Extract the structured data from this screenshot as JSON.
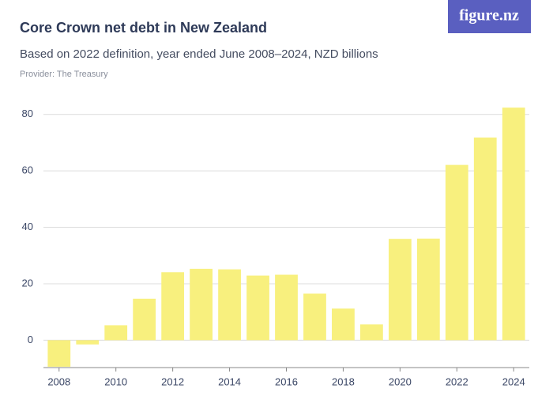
{
  "chart_data": {
    "type": "bar",
    "title": "Core Crown net debt in New Zealand",
    "subtitle": "Based on 2022 definition, year ended June 2008–2024, NZD billions",
    "provider": "Provider: The Treasury",
    "logo": "figure.nz",
    "x": [
      2008,
      2009,
      2010,
      2011,
      2012,
      2013,
      2014,
      2015,
      2016,
      2017,
      2018,
      2019,
      2020,
      2021,
      2022,
      2023,
      2024
    ],
    "values": [
      -9.4,
      -1.5,
      5.3,
      14.7,
      24.1,
      25.3,
      25.1,
      22.9,
      23.2,
      16.5,
      11.2,
      5.6,
      35.9,
      36.0,
      62.1,
      71.8,
      82.4
    ],
    "color": "#f8f07e",
    "xlim": [
      2007.45,
      2024.55
    ],
    "xticks": [
      2008,
      2010,
      2012,
      2014,
      2016,
      2018,
      2020,
      2022,
      2024
    ],
    "ylim": [
      -9.7,
      84.4
    ],
    "yticks": [
      0,
      20,
      40,
      60,
      80
    ],
    "grid": true
  }
}
